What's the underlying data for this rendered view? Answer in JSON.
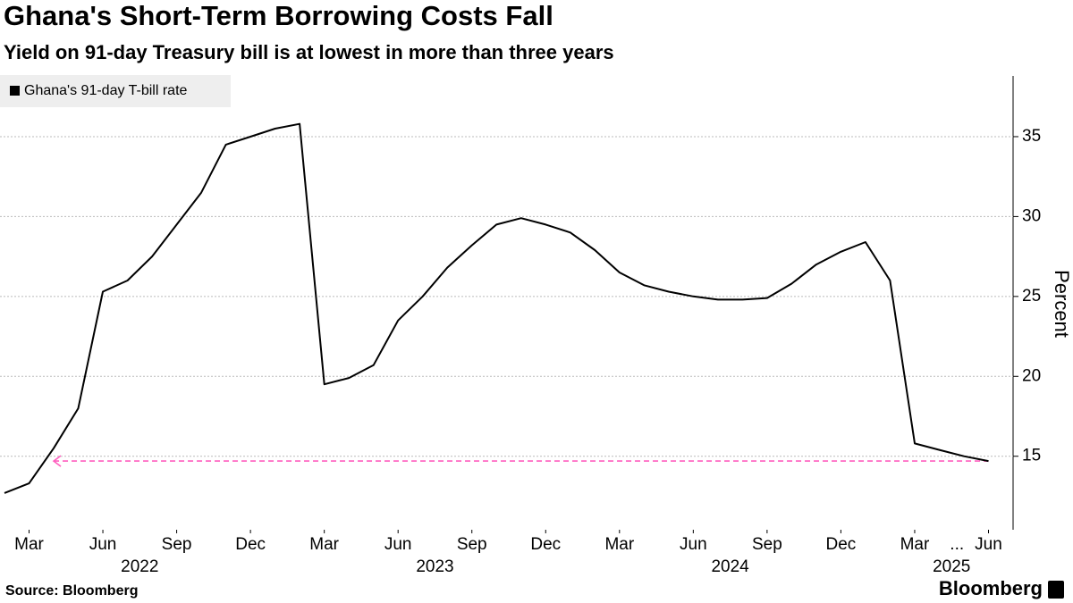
{
  "chart_data": {
    "type": "line",
    "title": "Ghana's Short-Term Borrowing Costs Fall",
    "subtitle": "Yield on 91-day Treasury bill is at lowest in more than three years",
    "y_axis_label": "Percent",
    "source": "Source: Bloomberg",
    "brand": "Bloomberg",
    "x": [
      "2022-02",
      "2022-03",
      "2022-04",
      "2022-05",
      "2022-06",
      "2022-07",
      "2022-08",
      "2022-09",
      "2022-10",
      "2022-11",
      "2022-12",
      "2023-01",
      "2023-02",
      "2023-03",
      "2023-04",
      "2023-05",
      "2023-06",
      "2023-07",
      "2023-08",
      "2023-09",
      "2023-10",
      "2023-11",
      "2023-12",
      "2024-01",
      "2024-02",
      "2024-03",
      "2024-04",
      "2024-05",
      "2024-06",
      "2024-07",
      "2024-08",
      "2024-09",
      "2024-10",
      "2024-11",
      "2024-12",
      "2025-01",
      "2025-02",
      "2025-03",
      "2025-04",
      "2025-05",
      "2025-06"
    ],
    "series": [
      {
        "name": "Ghana's 91-day T-bill rate",
        "color": "#000000",
        "values": [
          12.7,
          13.3,
          15.5,
          18.0,
          25.3,
          26.0,
          27.5,
          29.5,
          31.5,
          34.5,
          35.0,
          35.5,
          35.8,
          19.5,
          19.9,
          20.7,
          23.5,
          25.0,
          26.8,
          28.2,
          29.5,
          29.9,
          29.5,
          29.0,
          27.9,
          26.5,
          25.7,
          25.3,
          25.0,
          24.8,
          24.8,
          24.9,
          25.8,
          27.0,
          27.8,
          28.4,
          26.0,
          15.8,
          15.4,
          15.0,
          14.7
        ]
      }
    ],
    "reference_line": {
      "value": 14.7,
      "from": "2022-04",
      "to": "2025-06",
      "color": "#ff5fbf"
    },
    "xlim": [
      "2022-02",
      "2025-07"
    ],
    "xticks": [
      {
        "value": "2022-03",
        "label": "Mar"
      },
      {
        "value": "2022-06",
        "label": "Jun"
      },
      {
        "value": "2022-09",
        "label": "Sep"
      },
      {
        "value": "2022-12",
        "label": "Dec"
      },
      {
        "value": "2023-03",
        "label": "Mar"
      },
      {
        "value": "2023-06",
        "label": "Jun"
      },
      {
        "value": "2023-09",
        "label": "Sep"
      },
      {
        "value": "2023-12",
        "label": "Dec"
      },
      {
        "value": "2024-03",
        "label": "Mar"
      },
      {
        "value": "2024-06",
        "label": "Jun"
      },
      {
        "value": "2024-09",
        "label": "Sep"
      },
      {
        "value": "2024-12",
        "label": "Dec"
      },
      {
        "value": "2025-03",
        "label": "Mar"
      },
      {
        "value": "2025-06",
        "label": "Jun"
      }
    ],
    "axis_break_label": "...",
    "year_labels": [
      "2022",
      "2023",
      "2024",
      "2025"
    ],
    "ylim": [
      10.4,
      38.8
    ],
    "yticks": [
      15,
      20,
      25,
      30,
      35
    ],
    "y_axis_side": "right",
    "grid": true
  }
}
